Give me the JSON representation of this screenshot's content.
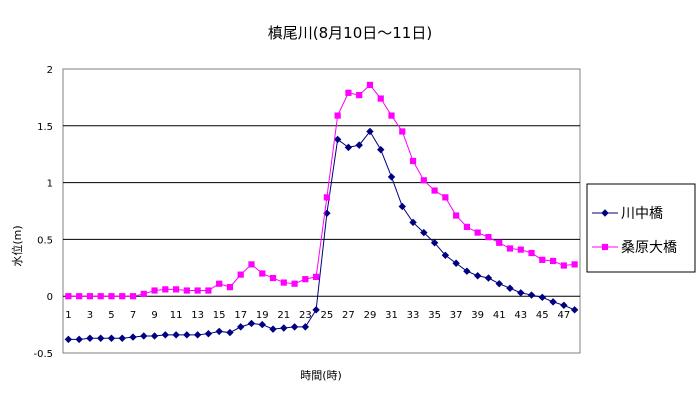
{
  "chart_data": {
    "type": "line",
    "title": "槙尾川(8月10日～11日)",
    "xlabel": "時間(時)",
    "ylabel": "水位(m)",
    "ylim": [
      -0.5,
      2
    ],
    "yticks": [
      "-0.5",
      "0",
      "0.5",
      "1",
      "1.5",
      "2"
    ],
    "xticks": [
      "1",
      "3",
      "5",
      "7",
      "9",
      "11",
      "13",
      "15",
      "17",
      "19",
      "21",
      "23",
      "25",
      "27",
      "29",
      "31",
      "33",
      "35",
      "37",
      "39",
      "41",
      "43",
      "45",
      "47"
    ],
    "grid": "horizontal",
    "legend": "right",
    "x": [
      1,
      2,
      3,
      4,
      5,
      6,
      7,
      8,
      9,
      10,
      11,
      12,
      13,
      14,
      15,
      16,
      17,
      18,
      19,
      20,
      21,
      22,
      23,
      24,
      25,
      26,
      27,
      28,
      29,
      30,
      31,
      32,
      33,
      34,
      35,
      36,
      37,
      38,
      39,
      40,
      41,
      42,
      43,
      44,
      45,
      46,
      47,
      48
    ],
    "series": [
      {
        "name": "川中橋",
        "color": "#000080",
        "marker": "diamond",
        "values": [
          -0.38,
          -0.38,
          -0.37,
          -0.37,
          -0.37,
          -0.37,
          -0.36,
          -0.35,
          -0.35,
          -0.34,
          -0.34,
          -0.34,
          -0.34,
          -0.33,
          -0.31,
          -0.32,
          -0.27,
          -0.24,
          -0.25,
          -0.29,
          -0.28,
          -0.27,
          -0.27,
          -0.12,
          0.73,
          1.38,
          1.31,
          1.33,
          1.45,
          1.29,
          1.05,
          0.79,
          0.65,
          0.56,
          0.47,
          0.36,
          0.29,
          0.22,
          0.18,
          0.16,
          0.11,
          0.07,
          0.03,
          0.01,
          -0.01,
          -0.05,
          -0.08,
          -0.12
        ]
      },
      {
        "name": "桑原大橋",
        "color": "#FF00FF",
        "marker": "square",
        "values": [
          0,
          0,
          0,
          0,
          0,
          0,
          0,
          0.02,
          0.05,
          0.06,
          0.06,
          0.05,
          0.05,
          0.05,
          0.11,
          0.08,
          0.19,
          0.28,
          0.2,
          0.16,
          0.12,
          0.11,
          0.15,
          0.17,
          0.87,
          1.59,
          1.79,
          1.77,
          1.86,
          1.74,
          1.59,
          1.45,
          1.19,
          1.02,
          0.93,
          0.87,
          0.71,
          0.61,
          0.56,
          0.52,
          0.47,
          0.42,
          0.41,
          0.38,
          0.32,
          0.31,
          0.27,
          0.28
        ]
      }
    ]
  }
}
